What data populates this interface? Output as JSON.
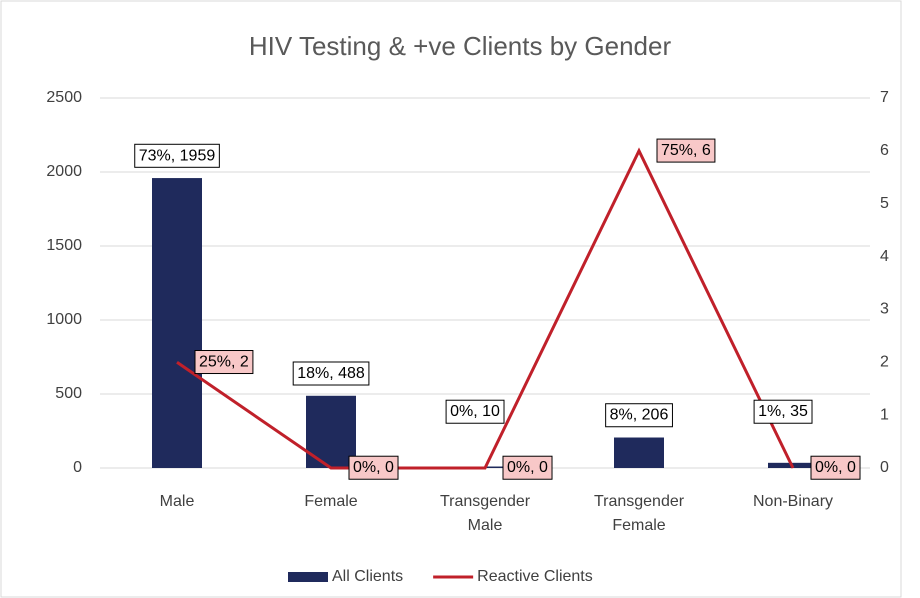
{
  "chart_data": {
    "type": "bar_line",
    "title": "HIV Testing & +ve Clients by Gender",
    "categories": [
      "Male",
      "Female",
      "Transgender Male",
      "Transgender Female",
      "Non-Binary"
    ],
    "series": [
      {
        "name": "All Clients",
        "type": "bar",
        "color": "#1f2a5c",
        "values": [
          1959,
          488,
          10,
          206,
          35
        ],
        "value_labels": [
          "73%, 1959",
          "18%, 488",
          "0%, 10",
          "8%, 206",
          "1%, 35"
        ]
      },
      {
        "name": "Reactive Clients",
        "type": "line",
        "axis": "y2",
        "color": "#c0202a",
        "values": [
          2,
          0,
          0,
          6,
          0
        ],
        "value_labels": [
          "25%, 2",
          "0%, 0",
          "0%, 0",
          "75%, 6",
          "0%, 0"
        ]
      }
    ],
    "ylim": [
      0,
      2500
    ],
    "yticks": [
      0,
      500,
      1000,
      1500,
      2000,
      2500
    ],
    "y2lim": [
      0,
      7
    ],
    "y2ticks": [
      0,
      1,
      2,
      3,
      4,
      5,
      6,
      7
    ],
    "grid": true,
    "legend": "bottom"
  }
}
